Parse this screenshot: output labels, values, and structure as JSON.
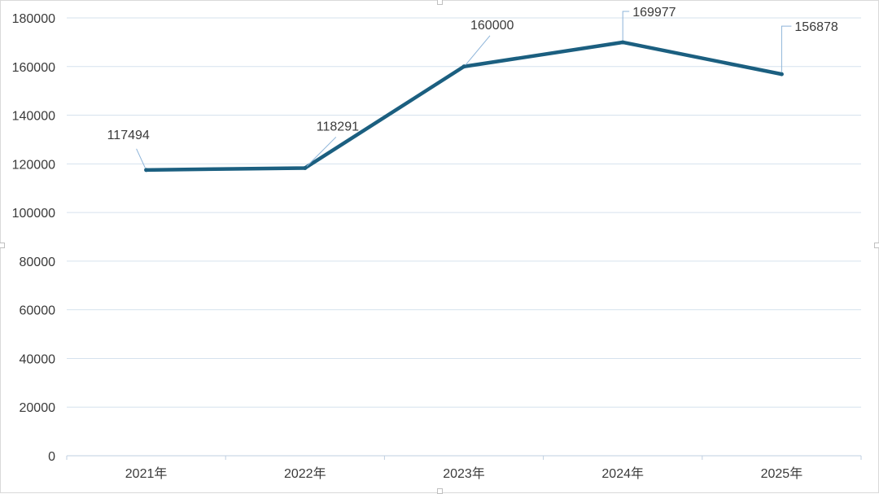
{
  "chart_data": {
    "type": "line",
    "categories": [
      "2021年",
      "2022年",
      "2023年",
      "2024年",
      "2025年"
    ],
    "series": [
      {
        "values": [
          117494,
          118291,
          160000,
          169977,
          156878
        ],
        "color": "#1b5f80"
      }
    ],
    "data_labels": [
      "117494",
      "118291",
      "160000",
      "169977",
      "156878"
    ],
    "yticks": [
      "0",
      "20000",
      "40000",
      "60000",
      "80000",
      "100000",
      "120000",
      "140000",
      "160000",
      "180000"
    ],
    "ylim": [
      0,
      180000
    ],
    "grid": true,
    "legend": "none",
    "gridline_color": "#d6e2ee"
  }
}
